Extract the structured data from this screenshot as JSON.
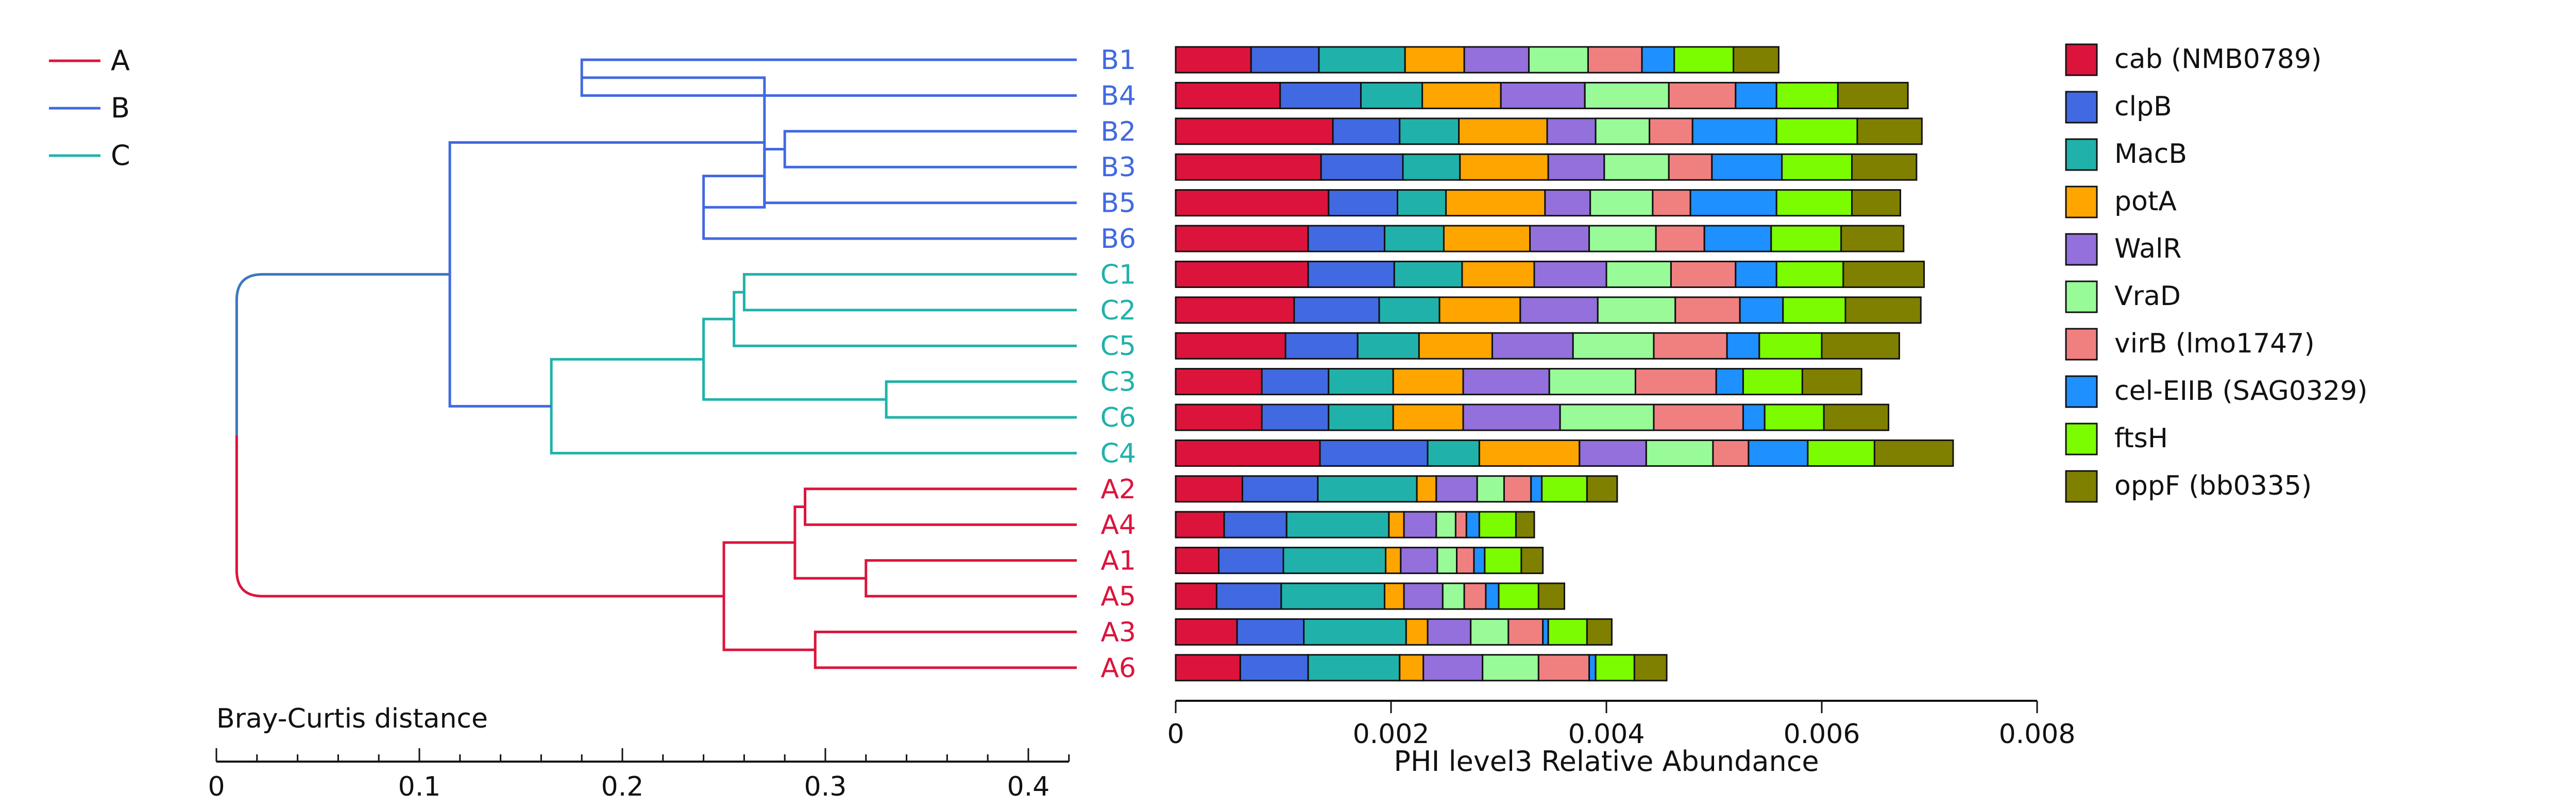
{
  "chart_data": {
    "type": "bar",
    "stacked": true,
    "orientation": "horizontal",
    "samples": [
      "B1",
      "B4",
      "B2",
      "B3",
      "B5",
      "B6",
      "C1",
      "C2",
      "C5",
      "C3",
      "C6",
      "C4",
      "A2",
      "A4",
      "A1",
      "A5",
      "A3",
      "A6"
    ],
    "sample_groups": [
      "B",
      "B",
      "B",
      "B",
      "B",
      "B",
      "C",
      "C",
      "C",
      "C",
      "C",
      "C",
      "A",
      "A",
      "A",
      "A",
      "A",
      "A"
    ],
    "series": [
      {
        "name": "cab (NMB0789)",
        "color": "#dc143c",
        "values": [
          0.0007,
          0.00097,
          0.00146,
          0.00135,
          0.00142,
          0.00123,
          0.00123,
          0.0011,
          0.00102,
          0.0008,
          0.0008,
          0.00134,
          0.00062,
          0.00045,
          0.0004,
          0.00038,
          0.00057,
          0.0006
        ]
      },
      {
        "name": "clpB",
        "color": "#4169e1",
        "values": [
          0.00063,
          0.00075,
          0.00062,
          0.00076,
          0.00064,
          0.00071,
          0.0008,
          0.00079,
          0.00067,
          0.00062,
          0.00062,
          0.001,
          0.0007,
          0.00058,
          0.0006,
          0.0006,
          0.00062,
          0.00063
        ]
      },
      {
        "name": "MacB",
        "color": "#20b2aa",
        "values": [
          0.0008,
          0.00057,
          0.00055,
          0.00053,
          0.00045,
          0.00055,
          0.00063,
          0.00056,
          0.00057,
          0.0006,
          0.0006,
          0.00048,
          0.00092,
          0.00095,
          0.00095,
          0.00096,
          0.00095,
          0.00085
        ]
      },
      {
        "name": "potA",
        "color": "#ffa500",
        "values": [
          0.00055,
          0.00073,
          0.00082,
          0.00082,
          0.00092,
          0.0008,
          0.00067,
          0.00075,
          0.00068,
          0.00065,
          0.00065,
          0.00093,
          0.00018,
          0.00014,
          0.00014,
          0.00018,
          0.0002,
          0.00022
        ]
      },
      {
        "name": "WalR",
        "color": "#9370db",
        "values": [
          0.0006,
          0.00078,
          0.00045,
          0.00052,
          0.00042,
          0.00055,
          0.00067,
          0.00072,
          0.00075,
          0.0008,
          0.0009,
          0.00062,
          0.00038,
          0.0003,
          0.00034,
          0.00036,
          0.0004,
          0.00055
        ]
      },
      {
        "name": "VraD",
        "color": "#98fb98",
        "values": [
          0.00055,
          0.00078,
          0.0005,
          0.0006,
          0.00058,
          0.00062,
          0.0006,
          0.00072,
          0.00075,
          0.0008,
          0.00087,
          0.00062,
          0.00025,
          0.00018,
          0.00018,
          0.0002,
          0.00035,
          0.00052
        ]
      },
      {
        "name": "virB (lmo1747)",
        "color": "#f08080",
        "values": [
          0.0005,
          0.00062,
          0.0004,
          0.0004,
          0.00035,
          0.00045,
          0.0006,
          0.0006,
          0.00068,
          0.00075,
          0.00083,
          0.00033,
          0.00025,
          0.0001,
          0.00016,
          0.0002,
          0.00032,
          0.00047
        ]
      },
      {
        "name": "cel-EIIB (SAG0329)",
        "color": "#1e90ff",
        "values": [
          0.0003,
          0.00038,
          0.00078,
          0.00065,
          0.0008,
          0.00062,
          0.00038,
          0.0004,
          0.0003,
          0.00025,
          0.0002,
          0.00055,
          0.0001,
          0.00012,
          0.0001,
          0.00012,
          5e-05,
          6e-05
        ]
      },
      {
        "name": "ftsH",
        "color": "#7cfc00",
        "values": [
          0.00055,
          0.00057,
          0.00075,
          0.00065,
          0.0007,
          0.00065,
          0.00062,
          0.00058,
          0.00058,
          0.00055,
          0.00055,
          0.00062,
          0.00042,
          0.00034,
          0.00034,
          0.00037,
          0.00036,
          0.00036
        ]
      },
      {
        "name": "oppF (bb0335)",
        "color": "#808000",
        "values": [
          0.00042,
          0.00065,
          0.0006,
          0.0006,
          0.00045,
          0.00058,
          0.00075,
          0.0007,
          0.00072,
          0.00055,
          0.0006,
          0.00073,
          0.00028,
          0.00017,
          0.0002,
          0.00024,
          0.00023,
          0.0003
        ]
      }
    ],
    "xlabel": "PHI level3 Relative Abundance",
    "xlim": [
      0,
      0.008
    ],
    "xticks": [
      "0",
      "0.002",
      "0.004",
      "0.006",
      "0.008"
    ],
    "legend_position": "right",
    "dendrogram": {
      "axis_label": "Bray-Curtis distance",
      "axis_ticks": [
        "0",
        "0.1",
        "0.2",
        "0.3",
        "0.4"
      ],
      "range": [
        0,
        0.42
      ],
      "group_legend": [
        {
          "label": "A",
          "color": "#dc143c"
        },
        {
          "label": "B",
          "color": "#4169e1"
        },
        {
          "label": "C",
          "color": "#20b2aa"
        }
      ],
      "merges": [
        {
          "left": "B1",
          "right": "B4",
          "height": 0.18
        },
        {
          "left": "B2",
          "right": "B3",
          "height": 0.28
        },
        {
          "left": "B23",
          "right": "B5",
          "height": 0.27
        },
        {
          "left": "B235",
          "right": "B6",
          "height": 0.24
        },
        {
          "left": "B14",
          "right": "B2356",
          "height": 0.27
        },
        {
          "left": "C1",
          "right": "C2",
          "height": 0.26
        },
        {
          "left": "C12",
          "right": "C5",
          "height": 0.255
        },
        {
          "left": "C3",
          "right": "C6",
          "height": 0.33
        },
        {
          "left": "C125",
          "right": "C36",
          "height": 0.24
        },
        {
          "left": "C12536",
          "right": "C4",
          "height": 0.165
        },
        {
          "left": "Bgroup",
          "right": "Cgroup",
          "height": 0.115
        },
        {
          "left": "A2",
          "right": "A4",
          "height": 0.29
        },
        {
          "left": "A1",
          "right": "A5",
          "height": 0.32
        },
        {
          "left": "A24",
          "right": "A15",
          "height": 0.285
        },
        {
          "left": "A3",
          "right": "A6",
          "height": 0.295
        },
        {
          "left": "A2415",
          "right": "A36",
          "height": 0.25
        },
        {
          "left": "BC",
          "right": "Agroup",
          "height": 0.01
        }
      ]
    }
  }
}
